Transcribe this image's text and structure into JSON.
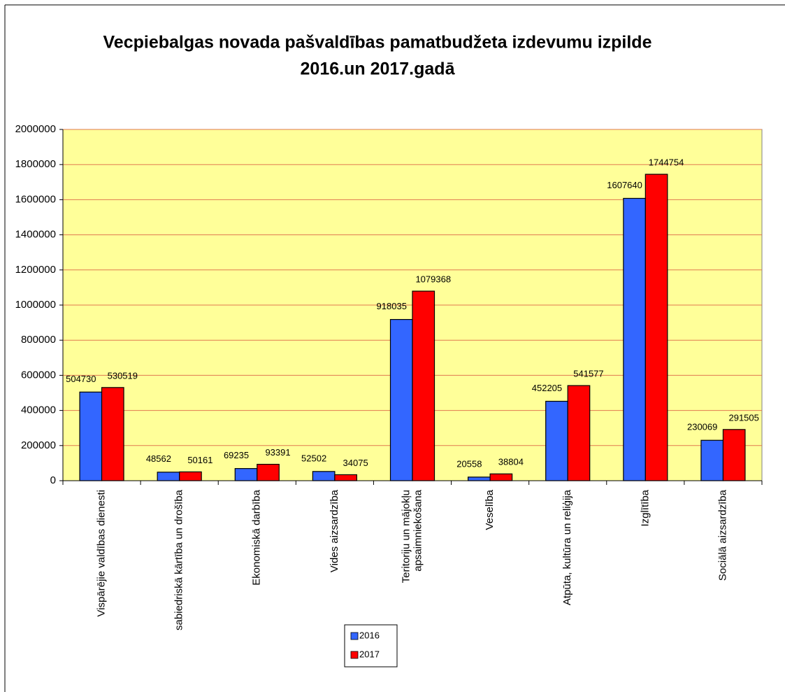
{
  "chart_data": {
    "type": "bar",
    "title_lines": [
      "Vecpiebalgas novada pašvaldības pamatbudžeta izdevumu izpilde",
      "2016.un 2017.gadā"
    ],
    "categories": [
      "Vispārējie valdības dienesti",
      "sabiedriskā kārtība un drošība",
      "Ekonomiskā darbība",
      "Vides aizsardzība",
      "Teritoriju un mājokļu\napsaimniekošana",
      "Veselība",
      "Atpūta, kultūra un reliģija",
      "Izglītība",
      "Sociālā aizsardzība"
    ],
    "series": [
      {
        "name": "2016",
        "color": "#3366ff",
        "values": [
          504730,
          48562,
          69235,
          52502,
          918035,
          20558,
          452205,
          1607640,
          230069
        ]
      },
      {
        "name": "2017",
        "color": "#ff0000",
        "values": [
          530519,
          50161,
          93391,
          34075,
          1079368,
          38804,
          541577,
          1744754,
          291505
        ]
      }
    ],
    "ylim": [
      0,
      2000000
    ],
    "yticks": [
      0,
      200000,
      400000,
      600000,
      800000,
      1000000,
      1200000,
      1400000,
      1600000,
      1800000,
      2000000
    ],
    "grid": true,
    "grid_color": "#e07a50",
    "plot_background": "#ffff99",
    "legend": "bottom"
  }
}
